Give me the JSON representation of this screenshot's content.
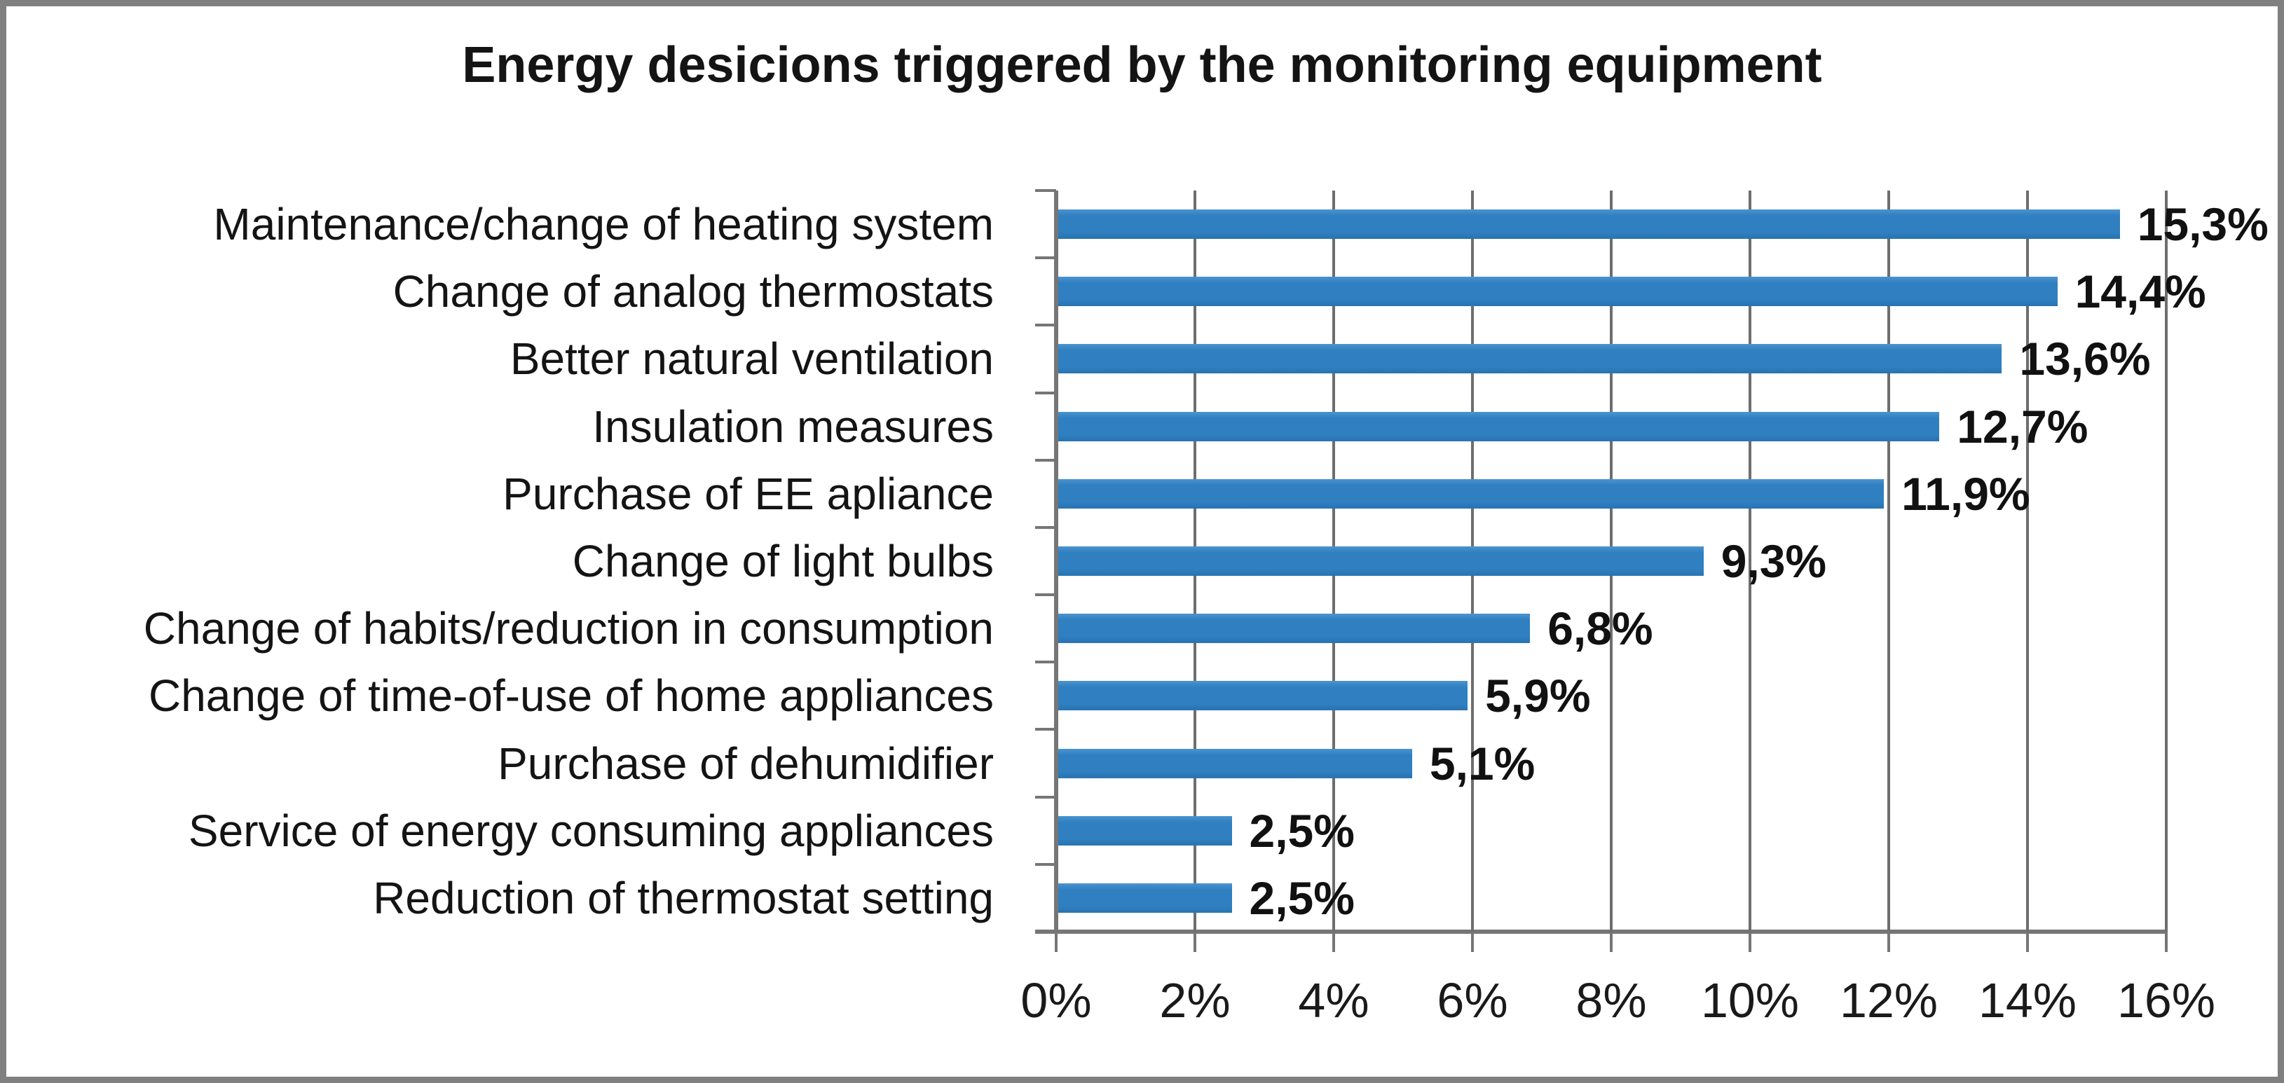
{
  "figure": {
    "background_color": "#ffffff",
    "frame_border_color": "#808080",
    "text_color": "#141414"
  },
  "chart_data": {
    "type": "bar",
    "orientation": "horizontal",
    "title": "Energy desicions triggered by the monitoring equipment",
    "categories": [
      "Maintenance/change of heating system",
      "Change of analog thermostats",
      "Better natural ventilation",
      "Insulation measures",
      "Purchase of EE apliance",
      "Change of light bulbs",
      "Change of habits/reduction in consumption",
      "Change of time-of-use of home appliances",
      "Purchase of dehumidifier",
      "Service of energy consuming appliances",
      "Reduction of thermostat setting"
    ],
    "values": [
      15.3,
      14.4,
      13.6,
      12.7,
      11.9,
      9.3,
      6.8,
      5.9,
      5.1,
      2.5,
      2.5
    ],
    "data_labels": [
      "15,3%",
      "14,4%",
      "13,6%",
      "12,7%",
      "11,9%",
      "9,3%",
      "6,8%",
      "5,9%",
      "5,1%",
      "2,5%",
      "2,5%"
    ],
    "x_tick_labels": [
      "0%",
      "2%",
      "4%",
      "6%",
      "8%",
      "10%",
      "12%",
      "14%",
      "16%"
    ],
    "xlim": [
      0,
      16
    ],
    "x_tick_step": 2,
    "xlabel": "",
    "ylabel": "",
    "legend": "none",
    "grid": "vertical",
    "bar_color": "#2F7FC1",
    "grid_color": "#6e6e6e",
    "axis_color": "#767676"
  }
}
